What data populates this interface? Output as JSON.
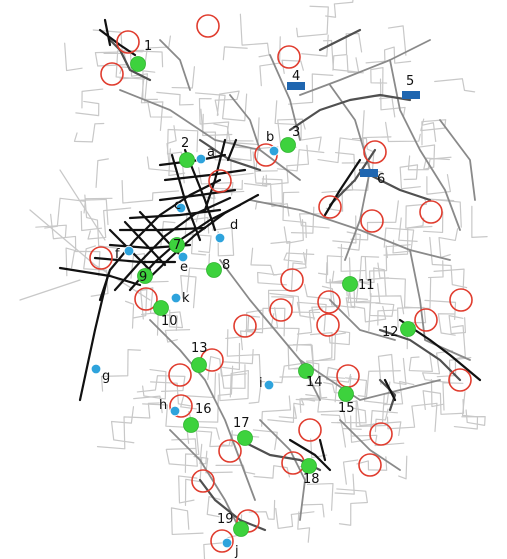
{
  "colors": {
    "background": "#ffffff",
    "road_light": "#c8c8c8",
    "road_mid": "#8a8a8a",
    "road_dark": "#505050",
    "road_black": "#111111",
    "green_marker": "#3dd23d",
    "green_stroke": "#2fb52f",
    "blue_marker": "#2ea3dc",
    "blue_stroke": "#ffffff",
    "red_circle": "#e03c2e",
    "blue_rect": "#1f66b0"
  },
  "green_markers": [
    {
      "id": "1",
      "label": "1"
    },
    {
      "id": "2",
      "label": "2"
    },
    {
      "id": "3",
      "label": "3"
    },
    {
      "id": "7",
      "label": "7"
    },
    {
      "id": "8",
      "label": "8"
    },
    {
      "id": "9",
      "label": "9"
    },
    {
      "id": "10",
      "label": "10"
    },
    {
      "id": "11",
      "label": "11"
    },
    {
      "id": "12",
      "label": "12"
    },
    {
      "id": "13",
      "label": "13"
    },
    {
      "id": "14",
      "label": "14"
    },
    {
      "id": "15",
      "label": "15"
    },
    {
      "id": "16",
      "label": "16"
    },
    {
      "id": "17",
      "label": "17"
    },
    {
      "id": "18",
      "label": "18"
    },
    {
      "id": "19",
      "label": "19"
    }
  ],
  "blue_markers": [
    {
      "id": "a",
      "label": "a"
    },
    {
      "id": "b",
      "label": "b"
    },
    {
      "id": "c",
      "label": "c"
    },
    {
      "id": "d",
      "label": "d"
    },
    {
      "id": "e",
      "label": "e"
    },
    {
      "id": "f",
      "label": "f"
    },
    {
      "id": "g",
      "label": "g"
    },
    {
      "id": "h",
      "label": "h"
    },
    {
      "id": "i",
      "label": "i"
    },
    {
      "id": "j",
      "label": "j"
    },
    {
      "id": "k",
      "label": "k"
    }
  ],
  "rect_markers": [
    {
      "id": "4",
      "label": "4"
    },
    {
      "id": "5",
      "label": "5"
    },
    {
      "id": "6",
      "label": "6"
    }
  ],
  "red_circle_count": 32
}
